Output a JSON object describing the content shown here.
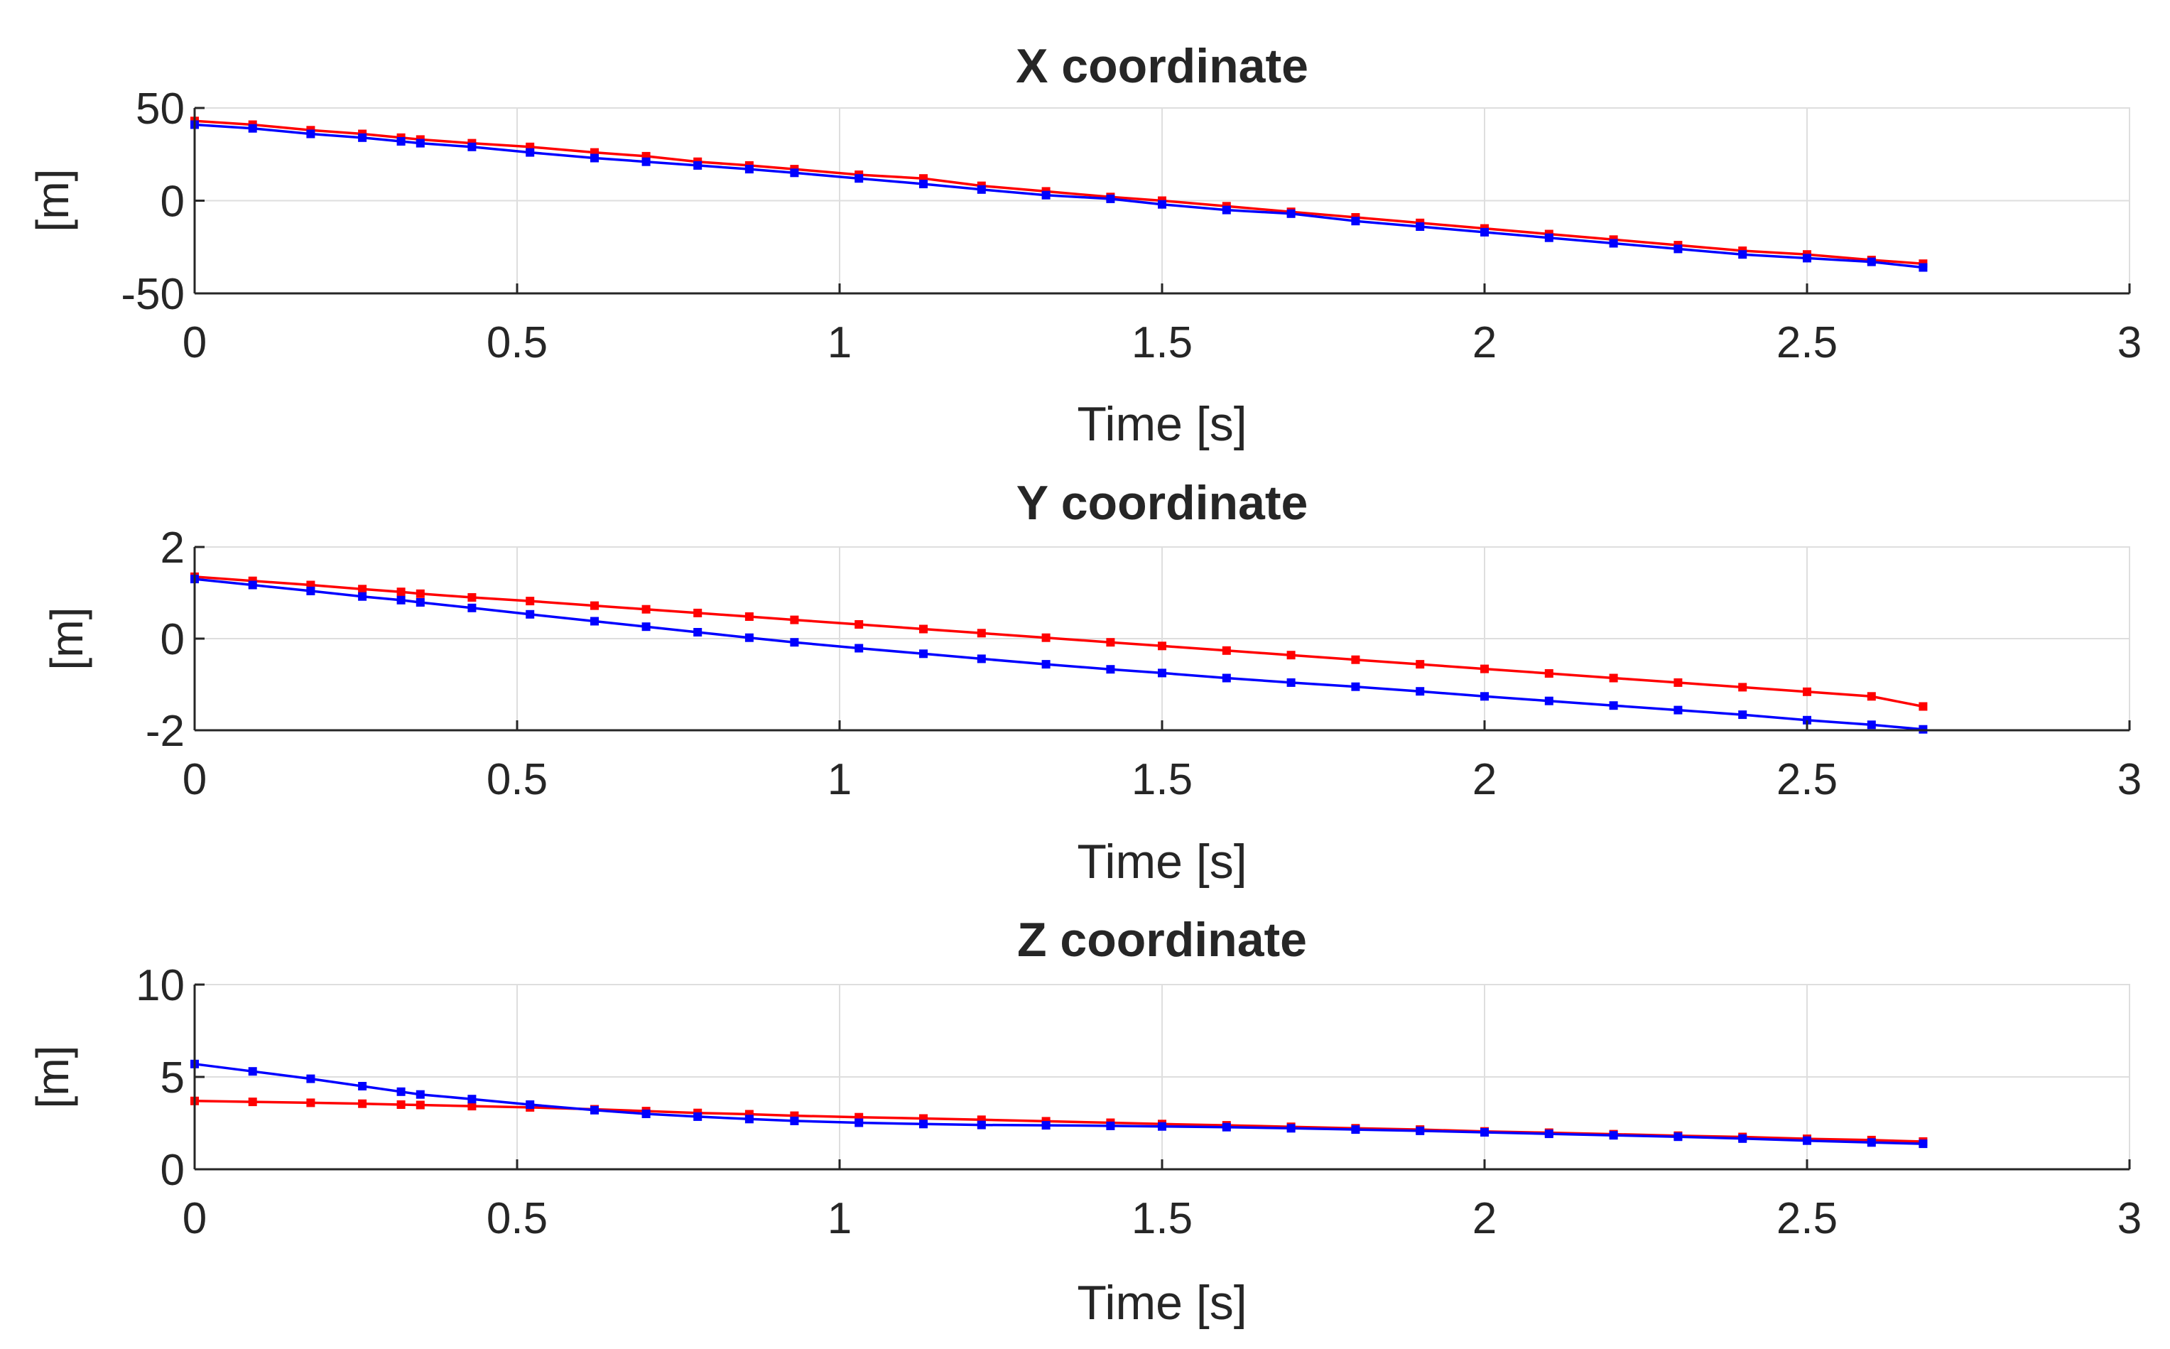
{
  "chart_data": [
    {
      "type": "line",
      "title": "X coordinate",
      "xlabel": "Time [s]",
      "ylabel": "[m]",
      "xlim": [
        0,
        3
      ],
      "ylim": [
        -50,
        50
      ],
      "xticks": [
        0,
        0.5,
        1,
        1.5,
        2,
        2.5,
        3
      ],
      "xtick_labels": [
        "0",
        "0.5",
        "1",
        "1.5",
        "2",
        "2.5",
        "3"
      ],
      "yticks": [
        -50,
        0,
        50
      ],
      "ytick_labels": [
        "-50",
        "0",
        "50"
      ],
      "grid": true,
      "series": [
        {
          "name": "red",
          "color": "#ff0000",
          "x": [
            0,
            0.09,
            0.18,
            0.26,
            0.32,
            0.35,
            0.43,
            0.52,
            0.62,
            0.7,
            0.78,
            0.86,
            0.93,
            1.03,
            1.13,
            1.22,
            1.32,
            1.42,
            1.5,
            1.6,
            1.7,
            1.8,
            1.9,
            2,
            2.1,
            2.2,
            2.3,
            2.4,
            2.5,
            2.6,
            2.68
          ],
          "y": [
            43,
            41,
            38,
            36,
            34,
            33,
            31,
            29,
            26,
            24,
            21,
            19,
            17,
            14,
            12,
            8,
            5,
            2,
            0,
            -3,
            -6,
            -9,
            -12,
            -15,
            -18,
            -21,
            -24,
            -27,
            -29,
            -32,
            -34
          ]
        },
        {
          "name": "blue",
          "color": "#0000ff",
          "x": [
            0,
            0.09,
            0.18,
            0.26,
            0.32,
            0.35,
            0.43,
            0.52,
            0.62,
            0.7,
            0.78,
            0.86,
            0.93,
            1.03,
            1.13,
            1.22,
            1.32,
            1.42,
            1.5,
            1.6,
            1.7,
            1.8,
            1.9,
            2,
            2.1,
            2.2,
            2.3,
            2.4,
            2.5,
            2.6,
            2.68
          ],
          "y": [
            41,
            39,
            36,
            34,
            32,
            31,
            29,
            26,
            23,
            21,
            19,
            17,
            15,
            12,
            9,
            6,
            3,
            1,
            -2,
            -5,
            -7,
            -11,
            -14,
            -17,
            -20,
            -23,
            -26,
            -29,
            -31,
            -33,
            -36
          ]
        }
      ]
    },
    {
      "type": "line",
      "title": "Y coordinate",
      "xlabel": "Time [s]",
      "ylabel": "[m]",
      "xlim": [
        0,
        3
      ],
      "ylim": [
        -2,
        2
      ],
      "xticks": [
        0,
        0.5,
        1,
        1.5,
        2,
        2.5,
        3
      ],
      "xtick_labels": [
        "0",
        "0.5",
        "1",
        "1.5",
        "2",
        "2.5",
        "3"
      ],
      "yticks": [
        -2,
        0,
        2
      ],
      "ytick_labels": [
        "-2",
        "0",
        "2"
      ],
      "grid": true,
      "series": [
        {
          "name": "red",
          "color": "#ff0000",
          "x": [
            0,
            0.09,
            0.18,
            0.26,
            0.32,
            0.35,
            0.43,
            0.52,
            0.62,
            0.7,
            0.78,
            0.86,
            0.93,
            1.03,
            1.13,
            1.22,
            1.32,
            1.42,
            1.5,
            1.6,
            1.7,
            1.8,
            1.9,
            2,
            2.1,
            2.2,
            2.3,
            2.4,
            2.5,
            2.6,
            2.68
          ],
          "y": [
            1.35,
            1.26,
            1.17,
            1.08,
            1.02,
            0.98,
            0.9,
            0.82,
            0.72,
            0.64,
            0.56,
            0.48,
            0.41,
            0.31,
            0.21,
            0.12,
            0.02,
            -0.08,
            -0.16,
            -0.26,
            -0.36,
            -0.46,
            -0.56,
            -0.66,
            -0.76,
            -0.86,
            -0.96,
            -1.06,
            -1.16,
            -1.26,
            -1.48
          ]
        },
        {
          "name": "blue",
          "color": "#0000ff",
          "x": [
            0,
            0.09,
            0.18,
            0.26,
            0.32,
            0.35,
            0.43,
            0.52,
            0.62,
            0.7,
            0.78,
            0.86,
            0.93,
            1.03,
            1.13,
            1.22,
            1.32,
            1.42,
            1.5,
            1.6,
            1.7,
            1.8,
            1.9,
            2,
            2.1,
            2.2,
            2.3,
            2.4,
            2.5,
            2.6,
            2.68
          ],
          "y": [
            1.3,
            1.17,
            1.04,
            0.92,
            0.84,
            0.79,
            0.67,
            0.53,
            0.38,
            0.26,
            0.14,
            0.02,
            -0.08,
            -0.21,
            -0.33,
            -0.44,
            -0.56,
            -0.67,
            -0.75,
            -0.86,
            -0.96,
            -1.05,
            -1.15,
            -1.26,
            -1.36,
            -1.46,
            -1.56,
            -1.66,
            -1.78,
            -1.88,
            -1.98
          ]
        }
      ]
    },
    {
      "type": "line",
      "title": "Z coordinate",
      "xlabel": "Time [s]",
      "ylabel": "[m]",
      "xlim": [
        0,
        3
      ],
      "ylim": [
        0,
        10
      ],
      "xticks": [
        0,
        0.5,
        1,
        1.5,
        2,
        2.5,
        3
      ],
      "xtick_labels": [
        "0",
        "0.5",
        "1",
        "1.5",
        "2",
        "2.5",
        "3"
      ],
      "yticks": [
        0,
        5,
        10
      ],
      "ytick_labels": [
        "0",
        "5",
        "10"
      ],
      "grid": true,
      "series": [
        {
          "name": "red",
          "color": "#ff0000",
          "x": [
            0,
            0.09,
            0.18,
            0.26,
            0.32,
            0.35,
            0.43,
            0.52,
            0.62,
            0.7,
            0.78,
            0.86,
            0.93,
            1.03,
            1.13,
            1.22,
            1.32,
            1.42,
            1.5,
            1.6,
            1.7,
            1.8,
            1.9,
            2,
            2.1,
            2.2,
            2.3,
            2.4,
            2.5,
            2.6,
            2.68
          ],
          "y": [
            3.7,
            3.65,
            3.6,
            3.55,
            3.5,
            3.48,
            3.42,
            3.35,
            3.25,
            3.15,
            3.05,
            2.98,
            2.9,
            2.82,
            2.75,
            2.68,
            2.6,
            2.52,
            2.45,
            2.38,
            2.3,
            2.22,
            2.15,
            2.05,
            1.98,
            1.9,
            1.82,
            1.75,
            1.65,
            1.58,
            1.5
          ]
        },
        {
          "name": "blue",
          "color": "#0000ff",
          "x": [
            0,
            0.09,
            0.18,
            0.26,
            0.32,
            0.35,
            0.43,
            0.52,
            0.62,
            0.7,
            0.78,
            0.86,
            0.93,
            1.03,
            1.13,
            1.22,
            1.32,
            1.42,
            1.5,
            1.6,
            1.7,
            1.8,
            1.9,
            2,
            2.1,
            2.2,
            2.3,
            2.4,
            2.5,
            2.6,
            2.68
          ],
          "y": [
            5.7,
            5.3,
            4.9,
            4.5,
            4.2,
            4.05,
            3.8,
            3.5,
            3.2,
            3.0,
            2.85,
            2.72,
            2.62,
            2.52,
            2.45,
            2.4,
            2.38,
            2.35,
            2.32,
            2.28,
            2.22,
            2.15,
            2.08,
            2.0,
            1.92,
            1.84,
            1.76,
            1.66,
            1.55,
            1.45,
            1.38
          ]
        }
      ]
    }
  ]
}
